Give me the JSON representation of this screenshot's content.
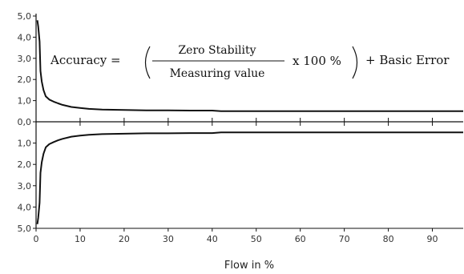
{
  "chart_data": {
    "type": "line",
    "title": "",
    "xlabel": "Flow in %",
    "ylabel": "",
    "xlim": [
      0,
      97
    ],
    "ylim": [
      0,
      5
    ],
    "x_ticks": [
      0,
      10,
      20,
      30,
      40,
      50,
      60,
      70,
      80,
      90
    ],
    "x_tick_labels": [
      "0",
      "10",
      "20",
      "30",
      "40",
      "50",
      "60",
      "70",
      "80",
      "90"
    ],
    "y_tick_labels_upper": [
      "5,0",
      "4,0",
      "3,0",
      "2,0",
      "1,0",
      "0,0"
    ],
    "y_tick_labels_lower": [
      "1,0",
      "2,0",
      "3,0",
      "4,0",
      "5,0"
    ],
    "grid": false,
    "line_color": "#111111",
    "series": [
      {
        "x": [
          0.3,
          0.5,
          0.8,
          1.0,
          1.3,
          1.7,
          2.2,
          3,
          4,
          5,
          6,
          8,
          10,
          12,
          15,
          20,
          25,
          30,
          35,
          40,
          42,
          50,
          60,
          70,
          80,
          90,
          97
        ],
        "y": [
          4.8,
          4.5,
          3.8,
          2.4,
          1.9,
          1.5,
          1.2,
          1.05,
          0.95,
          0.87,
          0.8,
          0.7,
          0.65,
          0.61,
          0.58,
          0.56,
          0.54,
          0.54,
          0.53,
          0.53,
          0.5,
          0.5,
          0.5,
          0.5,
          0.5,
          0.5,
          0.5
        ]
      },
      {
        "x": [
          0.3,
          0.5,
          0.8,
          1.0,
          1.3,
          1.7,
          2.2,
          3,
          4,
          5,
          6,
          8,
          10,
          12,
          15,
          20,
          25,
          30,
          35,
          40,
          42,
          50,
          60,
          70,
          80,
          90,
          97
        ],
        "y": [
          -4.8,
          -4.5,
          -3.8,
          -2.4,
          -1.9,
          -1.5,
          -1.2,
          -1.05,
          -0.95,
          -0.87,
          -0.8,
          -0.7,
          -0.65,
          -0.61,
          -0.58,
          -0.56,
          -0.54,
          -0.54,
          -0.53,
          -0.53,
          -0.5,
          -0.5,
          -0.5,
          -0.5,
          -0.5,
          -0.5,
          -0.5
        ]
      }
    ],
    "annotation": {
      "lhs": "Accuracy =",
      "numerator": "Zero Stability",
      "denominator": "Measuring value",
      "multiplier": "x 100 %",
      "rhs": "+ Basic Error"
    }
  }
}
